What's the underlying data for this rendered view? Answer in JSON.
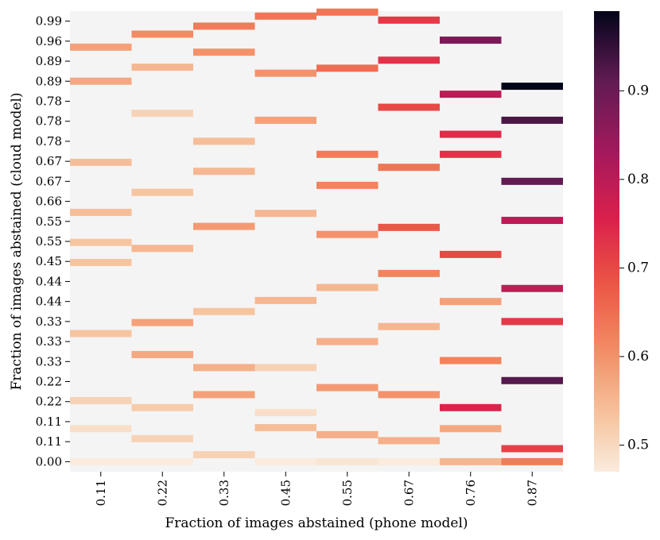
{
  "chart_data": {
    "type": "heatmap",
    "xlabel": "Fraction of images abstained (phone model)",
    "ylabel": "Fraction of images abstained (cloud model)",
    "x_tick_labels": [
      "0.11",
      "0.22",
      "0.33",
      "0.45",
      "0.55",
      "0.67",
      "0.76",
      "0.87"
    ],
    "y_tick_labels": [
      "0.99",
      "0.96",
      "0.89",
      "0.89",
      "0.78",
      "0.78",
      "0.78",
      "0.67",
      "0.67",
      "0.66",
      "0.55",
      "0.55",
      "0.45",
      "0.44",
      "0.44",
      "0.33",
      "0.33",
      "0.33",
      "0.22",
      "0.22",
      "0.11",
      "0.11",
      "0.00"
    ],
    "y_domain": [
      -0.5,
      22.5
    ],
    "background_color": "#f4f4f4",
    "colorbar": {
      "ticks": [
        0.5,
        0.6,
        0.7,
        0.8,
        0.9
      ],
      "tick_labels": [
        "0.5",
        "0.6",
        "0.7",
        "0.8",
        "0.9"
      ],
      "range": [
        0.47,
        0.99
      ],
      "colormap": "rocket_r"
    },
    "cells": [
      {
        "col": 0,
        "y": 22.0,
        "v": 0.47
      },
      {
        "col": 0,
        "y": 20.35,
        "v": 0.49
      },
      {
        "col": 0,
        "y": 18.95,
        "v": 0.51
      },
      {
        "col": 0,
        "y": 15.6,
        "v": 0.53
      },
      {
        "col": 0,
        "y": 12.05,
        "v": 0.53
      },
      {
        "col": 0,
        "y": 11.05,
        "v": 0.53
      },
      {
        "col": 0,
        "y": 9.55,
        "v": 0.54
      },
      {
        "col": 0,
        "y": 7.05,
        "v": 0.54
      },
      {
        "col": 0,
        "y": 3.0,
        "v": 0.57
      },
      {
        "col": 0,
        "y": 1.3,
        "v": 0.58
      },
      {
        "col": 1,
        "y": 22.0,
        "v": 0.47
      },
      {
        "col": 1,
        "y": 20.85,
        "v": 0.51
      },
      {
        "col": 1,
        "y": 19.3,
        "v": 0.52
      },
      {
        "col": 1,
        "y": 16.65,
        "v": 0.57
      },
      {
        "col": 1,
        "y": 15.05,
        "v": 0.58
      },
      {
        "col": 1,
        "y": 11.35,
        "v": 0.55
      },
      {
        "col": 1,
        "y": 8.55,
        "v": 0.53
      },
      {
        "col": 1,
        "y": 4.6,
        "v": 0.51
      },
      {
        "col": 1,
        "y": 2.3,
        "v": 0.55
      },
      {
        "col": 1,
        "y": 0.65,
        "v": 0.61
      },
      {
        "col": 2,
        "y": 21.65,
        "v": 0.51
      },
      {
        "col": 2,
        "y": 18.65,
        "v": 0.58
      },
      {
        "col": 2,
        "y": 17.3,
        "v": 0.56
      },
      {
        "col": 2,
        "y": 14.5,
        "v": 0.53
      },
      {
        "col": 2,
        "y": 10.25,
        "v": 0.59
      },
      {
        "col": 2,
        "y": 7.5,
        "v": 0.55
      },
      {
        "col": 2,
        "y": 6.0,
        "v": 0.54
      },
      {
        "col": 2,
        "y": 1.55,
        "v": 0.6
      },
      {
        "col": 2,
        "y": 0.25,
        "v": 0.63
      },
      {
        "col": 3,
        "y": 22.0,
        "v": 0.47
      },
      {
        "col": 3,
        "y": 20.3,
        "v": 0.54
      },
      {
        "col": 3,
        "y": 19.55,
        "v": 0.49
      },
      {
        "col": 3,
        "y": 17.3,
        "v": 0.51
      },
      {
        "col": 3,
        "y": 13.95,
        "v": 0.55
      },
      {
        "col": 3,
        "y": 9.6,
        "v": 0.55
      },
      {
        "col": 3,
        "y": 4.95,
        "v": 0.58
      },
      {
        "col": 3,
        "y": 2.6,
        "v": 0.6
      },
      {
        "col": 3,
        "y": -0.25,
        "v": 0.64
      },
      {
        "col": 4,
        "y": 22.0,
        "v": 0.48
      },
      {
        "col": 4,
        "y": 20.65,
        "v": 0.56
      },
      {
        "col": 4,
        "y": 18.3,
        "v": 0.59
      },
      {
        "col": 4,
        "y": 16.0,
        "v": 0.56
      },
      {
        "col": 4,
        "y": 13.3,
        "v": 0.55
      },
      {
        "col": 4,
        "y": 10.65,
        "v": 0.6
      },
      {
        "col": 4,
        "y": 8.2,
        "v": 0.62
      },
      {
        "col": 4,
        "y": 6.65,
        "v": 0.63
      },
      {
        "col": 4,
        "y": 2.35,
        "v": 0.65
      },
      {
        "col": 4,
        "y": -0.45,
        "v": 0.64
      },
      {
        "col": 5,
        "y": 22.0,
        "v": 0.47
      },
      {
        "col": 5,
        "y": 20.95,
        "v": 0.56
      },
      {
        "col": 5,
        "y": 18.65,
        "v": 0.6
      },
      {
        "col": 5,
        "y": 15.25,
        "v": 0.55
      },
      {
        "col": 5,
        "y": 12.6,
        "v": 0.62
      },
      {
        "col": 5,
        "y": 10.3,
        "v": 0.68
      },
      {
        "col": 5,
        "y": 7.3,
        "v": 0.64
      },
      {
        "col": 5,
        "y": 4.3,
        "v": 0.7
      },
      {
        "col": 5,
        "y": 1.95,
        "v": 0.73
      },
      {
        "col": 5,
        "y": -0.05,
        "v": 0.72
      },
      {
        "col": 6,
        "y": 22.0,
        "v": 0.55
      },
      {
        "col": 6,
        "y": 20.35,
        "v": 0.57
      },
      {
        "col": 6,
        "y": 19.3,
        "v": 0.75
      },
      {
        "col": 6,
        "y": 16.95,
        "v": 0.62
      },
      {
        "col": 6,
        "y": 14.0,
        "v": 0.58
      },
      {
        "col": 6,
        "y": 11.65,
        "v": 0.7
      },
      {
        "col": 6,
        "y": 6.65,
        "v": 0.73
      },
      {
        "col": 6,
        "y": 5.65,
        "v": 0.74
      },
      {
        "col": 6,
        "y": 3.65,
        "v": 0.8
      },
      {
        "col": 6,
        "y": 0.95,
        "v": 0.88
      },
      {
        "col": 7,
        "y": 22.0,
        "v": 0.63
      },
      {
        "col": 7,
        "y": 21.35,
        "v": 0.71
      },
      {
        "col": 7,
        "y": 17.95,
        "v": 0.92
      },
      {
        "col": 7,
        "y": 15.0,
        "v": 0.72
      },
      {
        "col": 7,
        "y": 13.35,
        "v": 0.79
      },
      {
        "col": 7,
        "y": 9.95,
        "v": 0.8
      },
      {
        "col": 7,
        "y": 8.0,
        "v": 0.91
      },
      {
        "col": 7,
        "y": 4.95,
        "v": 0.93
      },
      {
        "col": 7,
        "y": 3.25,
        "v": 0.99
      }
    ]
  }
}
